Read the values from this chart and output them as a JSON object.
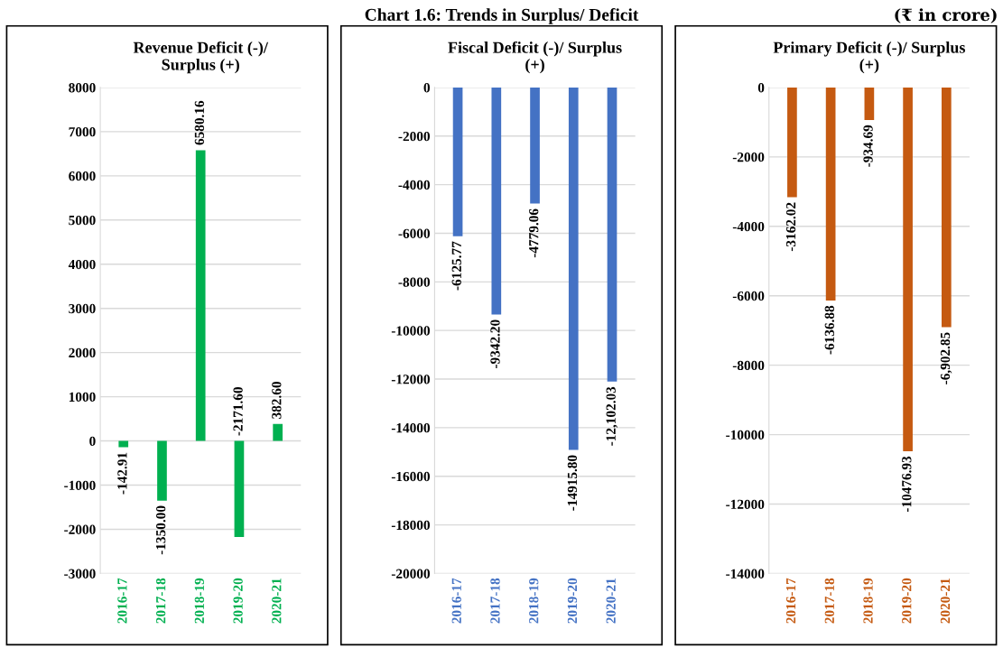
{
  "chart_data": [
    {
      "type": "bar",
      "title": "Revenue Deficit (-)/\nSurplus (+)",
      "annotations": [
        "Chart 1.6: Trends in Surplus/ Deficit",
        "(₹ in crore)"
      ],
      "categories": [
        "2016-17",
        "2017-18",
        "2018-19",
        "2019-20",
        "2020-21"
      ],
      "series": [
        {
          "color": "#00b050",
          "values": [
            -142.91,
            -1350.0,
            6580.16,
            -2171.6,
            382.6
          ]
        }
      ],
      "value_labels": [
        "-142.91",
        "-1350.00",
        "6580.16",
        "-2171.60",
        "382.60"
      ],
      "ylim": [
        -3000,
        8000
      ],
      "yticks": [
        -3000,
        -2000,
        -1000,
        0,
        1000,
        2000,
        3000,
        4000,
        5000,
        6000,
        7000,
        8000
      ],
      "grid": "y"
    },
    {
      "type": "bar",
      "title": "Fiscal Deficit (-)/ Surplus\n(+)",
      "categories": [
        "2016-17",
        "2017-18",
        "2018-19",
        "2019-20",
        "2020-21"
      ],
      "series": [
        {
          "color": "#4472c4",
          "values": [
            -6125.77,
            -9342.2,
            -4779.06,
            -14915.8,
            -12102.03
          ]
        }
      ],
      "value_labels": [
        "-6125.77",
        "-9342.20",
        "-4779.06",
        "-14915.80",
        "-12,102.03"
      ],
      "ylim": [
        -20000,
        0
      ],
      "yticks": [
        -20000,
        -18000,
        -16000,
        -14000,
        -12000,
        -10000,
        -8000,
        -6000,
        -4000,
        -2000,
        0
      ],
      "grid": "y"
    },
    {
      "type": "bar",
      "title": "Primary Deficit (-)/ Surplus\n(+)",
      "categories": [
        "2016-17",
        "2017-18",
        "2018-19",
        "2019-20",
        "2020-21"
      ],
      "series": [
        {
          "color": "#c55a11",
          "values": [
            -3162.02,
            -6136.88,
            -934.69,
            -10476.93,
            -6902.85
          ]
        }
      ],
      "value_labels": [
        "-3162.02",
        "-6136.88",
        "-934.69",
        "-10476.93",
        "-6,902.85"
      ],
      "ylim": [
        -14000,
        0
      ],
      "yticks": [
        -14000,
        -12000,
        -10000,
        -8000,
        -6000,
        -4000,
        -2000,
        0
      ],
      "grid": "y"
    }
  ]
}
